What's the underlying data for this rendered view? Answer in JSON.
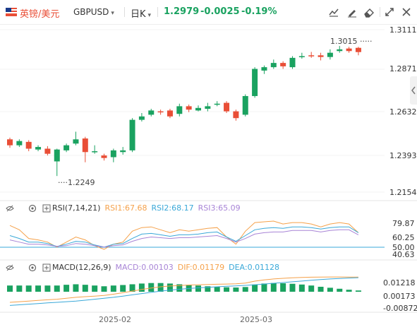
{
  "toolbar": {
    "pair_name": "英镑/美元",
    "pair_code": "GBPUSD",
    "period": "日K",
    "last": "1.2979",
    "change": "-0.0025",
    "change_pct": "-0.19%",
    "up_color": "#e94e36",
    "down_color": "#1aa260",
    "icons": [
      "flag-icon",
      "chevron-down-icon",
      "indicator-icon",
      "draw-icon",
      "eraser-icon",
      "fullscreen-icon",
      "close-icon"
    ]
  },
  "price_axis": [
    "1.3111",
    "1.2871",
    "1.2632",
    "1.2393",
    "1.2154"
  ],
  "annotations": {
    "high": "1.3015",
    "low": "1.2249"
  },
  "rsi": {
    "name": "RSI(7,14,21)",
    "rsi1": "RSI1:67.68",
    "rsi2": "RSI2:68.17",
    "rsi3": "RSI3:65.09",
    "colors": {
      "rsi1": "#f5a14a",
      "rsi2": "#3aa8d8",
      "rsi3": "#a884d6"
    },
    "axis": [
      "79.87",
      "60.25",
      "50.00",
      "40.63"
    ]
  },
  "macd": {
    "name": "MACD(12,26,9)",
    "macd_text": "MACD:0.00103",
    "dif_text": "DIF:0.01179",
    "dea_text": "DEA:0.01128",
    "colors": {
      "macd": "#a884d6",
      "dif": "#f5a14a",
      "dea": "#3aa8d8",
      "bar": "#1aa260"
    },
    "axis": [
      "0.01218",
      "0.00173",
      "-0.00872"
    ]
  },
  "dates": [
    "2025-02",
    "2025-03"
  ],
  "candles": [
    [
      1.2465,
      1.243,
      1.2475,
      1.2415
    ],
    [
      1.243,
      1.2455,
      1.2465,
      1.242
    ],
    [
      1.245,
      1.241,
      1.246,
      1.2395
    ],
    [
      1.2405,
      1.242,
      1.243,
      1.2395
    ],
    [
      1.241,
      1.238,
      1.2425,
      1.237
    ],
    [
      1.2335,
      1.2405,
      1.241,
      1.2249
    ],
    [
      1.24,
      1.243,
      1.244,
      1.239
    ],
    [
      1.244,
      1.2465,
      1.251,
      1.243
    ],
    [
      1.247,
      1.239,
      1.248,
      1.233
    ],
    [
      1.239,
      1.2395,
      1.243,
      1.238
    ],
    [
      1.237,
      1.2355,
      1.238,
      1.234
    ],
    [
      1.236,
      1.24,
      1.241,
      1.233
    ],
    [
      1.239,
      1.24,
      1.242,
      1.2375
    ],
    [
      1.24,
      1.258,
      1.259,
      1.239
    ],
    [
      1.258,
      1.26,
      1.262,
      1.257
    ],
    [
      1.261,
      1.2635,
      1.2645,
      1.26
    ],
    [
      1.263,
      1.2625,
      1.264,
      1.261
    ],
    [
      1.2635,
      1.26,
      1.2645,
      1.259
    ],
    [
      1.2615,
      1.266,
      1.2675,
      1.26
    ],
    [
      1.266,
      1.264,
      1.267,
      1.2625
    ],
    [
      1.2635,
      1.265,
      1.2665,
      1.263
    ],
    [
      1.2645,
      1.266,
      1.268,
      1.263
    ],
    [
      1.267,
      1.2675,
      1.269,
      1.266
    ],
    [
      1.268,
      1.263,
      1.269,
      1.262
    ],
    [
      1.263,
      1.259,
      1.264,
      1.2575
    ],
    [
      1.261,
      1.272,
      1.273,
      1.26
    ],
    [
      1.272,
      1.288,
      1.289,
      1.271
    ],
    [
      1.287,
      1.289,
      1.29,
      1.285
    ],
    [
      1.289,
      1.2915,
      1.2935,
      1.288
    ],
    [
      1.2915,
      1.2895,
      1.2925,
      1.288
    ],
    [
      1.289,
      1.2945,
      1.2955,
      1.288
    ],
    [
      1.295,
      1.2955,
      1.2975,
      1.294
    ],
    [
      1.296,
      1.2955,
      1.298,
      1.2945
    ],
    [
      1.296,
      1.295,
      1.2975,
      1.293
    ],
    [
      1.295,
      1.2975,
      1.2995,
      1.2935
    ],
    [
      1.2985,
      1.2995,
      1.3015,
      1.2975
    ],
    [
      1.3,
      1.2985,
      1.301,
      1.2975
    ],
    [
      1.3004,
      1.2979,
      1.301,
      1.296
    ]
  ],
  "rsi_series": {
    "rsi1": [
      78,
      72,
      60,
      58,
      55,
      48,
      55,
      62,
      58,
      50,
      45,
      52,
      55,
      70,
      75,
      76,
      72,
      68,
      72,
      70,
      72,
      74,
      75,
      62,
      52,
      70,
      82,
      83,
      84,
      80,
      82,
      82,
      80,
      76,
      80,
      82,
      80,
      68
    ],
    "rsi2": [
      64,
      60,
      55,
      55,
      53,
      49,
      52,
      56,
      55,
      51,
      48,
      52,
      53,
      60,
      66,
      67,
      65,
      63,
      65,
      65,
      66,
      68,
      69,
      62,
      56,
      64,
      72,
      74,
      75,
      74,
      76,
      76,
      75,
      73,
      75,
      76,
      76,
      68
    ],
    "rsi3": [
      58,
      55,
      52,
      52,
      51,
      49,
      50,
      53,
      52,
      50,
      48,
      50,
      51,
      56,
      60,
      62,
      61,
      60,
      61,
      61,
      62,
      63,
      64,
      60,
      55,
      60,
      66,
      68,
      69,
      69,
      71,
      71,
      71,
      69,
      71,
      72,
      72,
      65
    ]
  },
  "macd_series": {
    "dif": [
      -0.0085,
      -0.008,
      -0.0075,
      -0.007,
      -0.0065,
      -0.006,
      -0.0052,
      -0.0045,
      -0.004,
      -0.0035,
      -0.003,
      -0.002,
      -0.0008,
      0.0005,
      0.0018,
      0.003,
      0.004,
      0.0046,
      0.005,
      0.0054,
      0.0056,
      0.0058,
      0.006,
      0.0062,
      0.0064,
      0.007,
      0.0085,
      0.0095,
      0.0103,
      0.0108,
      0.0112,
      0.0115,
      0.0117,
      0.0118,
      0.0119,
      0.0119,
      0.0118,
      0.0118
    ],
    "dea": [
      -0.011,
      -0.0105,
      -0.01,
      -0.0095,
      -0.009,
      -0.0085,
      -0.008,
      -0.0075,
      -0.0068,
      -0.006,
      -0.0052,
      -0.0045,
      -0.0035,
      -0.0025,
      -0.0015,
      -0.0005,
      0.0005,
      0.0013,
      0.002,
      0.0026,
      0.0031,
      0.0036,
      0.004,
      0.0044,
      0.0047,
      0.0051,
      0.0056,
      0.0062,
      0.0068,
      0.0074,
      0.008,
      0.0086,
      0.0092,
      0.0098,
      0.0103,
      0.0107,
      0.011,
      0.0113
    ],
    "hist": [
      0.005,
      0.005,
      0.005,
      0.005,
      0.005,
      0.005,
      0.0056,
      0.006,
      0.0056,
      0.005,
      0.0044,
      0.005,
      0.0054,
      0.006,
      0.0066,
      0.007,
      0.007,
      0.0066,
      0.006,
      0.0056,
      0.005,
      0.0044,
      0.004,
      0.0036,
      0.0034,
      0.0038,
      0.0058,
      0.0066,
      0.007,
      0.0068,
      0.0064,
      0.0058,
      0.005,
      0.004,
      0.0032,
      0.0024,
      0.0016,
      0.001
    ]
  }
}
